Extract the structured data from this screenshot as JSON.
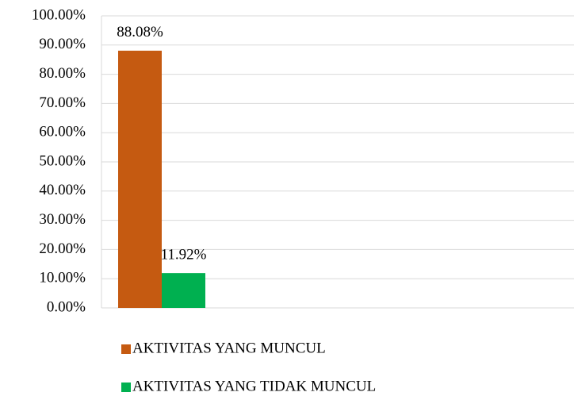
{
  "chart_data": {
    "type": "bar",
    "categories": [
      null
    ],
    "series": [
      {
        "name": "AKTIVITAS YANG MUNCUL",
        "color": "#c55a11",
        "values": [
          88.08
        ],
        "value_labels": [
          "88.08%"
        ]
      },
      {
        "name": "AKTIVITAS YANG TIDAK MUNCUL",
        "color": "#00b050",
        "values": [
          11.92
        ],
        "value_labels": [
          "11.92%"
        ]
      }
    ],
    "ylim": [
      0,
      100
    ],
    "yticks": [
      {
        "value": 0,
        "label": "0.00%"
      },
      {
        "value": 10,
        "label": "10.00%"
      },
      {
        "value": 20,
        "label": "20.00%"
      },
      {
        "value": 30,
        "label": "30.00%"
      },
      {
        "value": 40,
        "label": "40.00%"
      },
      {
        "value": 50,
        "label": "50.00%"
      },
      {
        "value": 60,
        "label": "60.00%"
      },
      {
        "value": 70,
        "label": "70.00%"
      },
      {
        "value": 80,
        "label": "80.00%"
      },
      {
        "value": 90,
        "label": "90.00%"
      },
      {
        "value": 100,
        "label": "100.00%"
      }
    ],
    "grid": true,
    "legend": "bottom"
  }
}
